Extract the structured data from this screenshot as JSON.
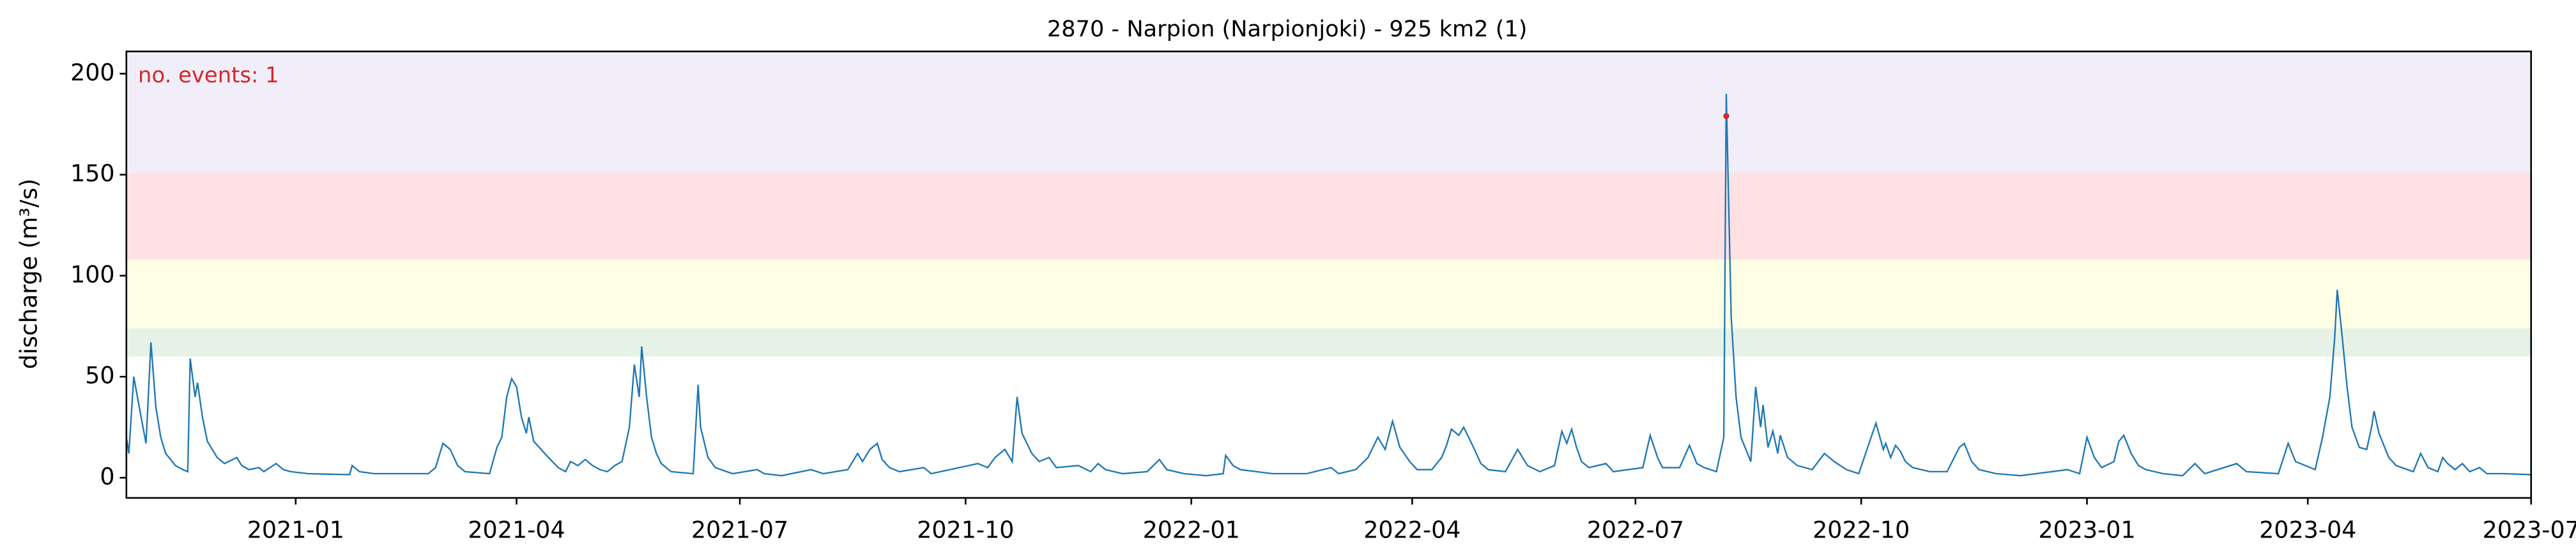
{
  "chart_data": {
    "type": "line",
    "title": "2870 - Narpion (Narpionjoki) - 925 km2 (1)",
    "y_label": "discharge (m³/s)",
    "annotation": "no. events: 1",
    "annotation_color": "#d62728",
    "xlim": [
      "2020-10-24",
      "2023-07-01"
    ],
    "ylim": [
      -10,
      211
    ],
    "yticks": [
      0,
      50,
      100,
      150,
      200
    ],
    "xticks": [
      {
        "value": "2021-01-01",
        "label": "2021-01"
      },
      {
        "value": "2021-04-01",
        "label": "2021-04"
      },
      {
        "value": "2021-07-01",
        "label": "2021-07"
      },
      {
        "value": "2021-10-01",
        "label": "2021-10"
      },
      {
        "value": "2022-01-01",
        "label": "2022-01"
      },
      {
        "value": "2022-04-01",
        "label": "2022-04"
      },
      {
        "value": "2022-07-01",
        "label": "2022-07"
      },
      {
        "value": "2022-10-01",
        "label": "2022-10"
      },
      {
        "value": "2023-01-01",
        "label": "2023-01"
      },
      {
        "value": "2023-04-01",
        "label": "2023-04"
      },
      {
        "value": "2023-07-01",
        "label": "2023-07"
      }
    ],
    "bands": [
      {
        "from": 60,
        "to": 74,
        "color": "#e5f2e5"
      },
      {
        "from": 74,
        "to": 108,
        "color": "#fefee4"
      },
      {
        "from": 108,
        "to": 151,
        "color": "#ffe1e4"
      },
      {
        "from": 151,
        "to": 211,
        "color": "#f1eefa"
      }
    ],
    "series": [
      {
        "color": "#1f77b4",
        "x": [
          "2020-10-24",
          "2020-10-25",
          "2020-10-27",
          "2020-10-30",
          "2020-11-01",
          "2020-11-03",
          "2020-11-05",
          "2020-11-07",
          "2020-11-09",
          "2020-11-13",
          "2020-11-16",
          "2020-11-18",
          "2020-11-19",
          "2020-11-21",
          "2020-11-22",
          "2020-11-24",
          "2020-11-26",
          "2020-11-30",
          "2020-12-03",
          "2020-12-08",
          "2020-12-10",
          "2020-12-13",
          "2020-12-17",
          "2020-12-19",
          "2020-12-24",
          "2020-12-27",
          "2020-12-30",
          "2021-01-06",
          "2021-01-23",
          "2021-01-24",
          "2021-01-27",
          "2021-02-02",
          "2021-02-24",
          "2021-02-27",
          "2021-03-02",
          "2021-03-05",
          "2021-03-08",
          "2021-03-11",
          "2021-03-21",
          "2021-03-24",
          "2021-03-26",
          "2021-03-28",
          "2021-03-30",
          "2021-04-01",
          "2021-04-03",
          "2021-04-05",
          "2021-04-06",
          "2021-04-08",
          "2021-04-11",
          "2021-04-14",
          "2021-04-18",
          "2021-04-21",
          "2021-04-23",
          "2021-04-26",
          "2021-04-29",
          "2021-05-02",
          "2021-05-05",
          "2021-05-08",
          "2021-05-11",
          "2021-05-14",
          "2021-05-17",
          "2021-05-19",
          "2021-05-21",
          "2021-05-22",
          "2021-05-24",
          "2021-05-26",
          "2021-05-28",
          "2021-05-30",
          "2021-06-03",
          "2021-06-12",
          "2021-06-14",
          "2021-06-15",
          "2021-06-18",
          "2021-06-21",
          "2021-06-28",
          "2021-07-08",
          "2021-07-11",
          "2021-07-18",
          "2021-07-30",
          "2021-08-04",
          "2021-08-14",
          "2021-08-18",
          "2021-08-20",
          "2021-08-23",
          "2021-08-26",
          "2021-08-28",
          "2021-08-31",
          "2021-09-04",
          "2021-09-14",
          "2021-09-17",
          "2021-10-06",
          "2021-10-10",
          "2021-10-13",
          "2021-10-17",
          "2021-10-20",
          "2021-10-22",
          "2021-10-24",
          "2021-10-28",
          "2021-10-31",
          "2021-11-04",
          "2021-11-07",
          "2021-11-16",
          "2021-11-21",
          "2021-11-24",
          "2021-11-27",
          "2021-12-04",
          "2021-12-14",
          "2021-12-19",
          "2021-12-22",
          "2021-12-29",
          "2022-01-07",
          "2022-01-14",
          "2022-01-15",
          "2022-01-18",
          "2022-01-21",
          "2022-02-03",
          "2022-02-17",
          "2022-02-27",
          "2022-03-02",
          "2022-03-09",
          "2022-03-14",
          "2022-03-18",
          "2022-03-21",
          "2022-03-24",
          "2022-03-27",
          "2022-03-31",
          "2022-04-03",
          "2022-04-09",
          "2022-04-13",
          "2022-04-15",
          "2022-04-17",
          "2022-04-20",
          "2022-04-22",
          "2022-04-26",
          "2022-04-29",
          "2022-05-02",
          "2022-05-09",
          "2022-05-14",
          "2022-05-18",
          "2022-05-23",
          "2022-05-29",
          "2022-06-01",
          "2022-06-03",
          "2022-06-05",
          "2022-06-07",
          "2022-06-09",
          "2022-06-12",
          "2022-06-19",
          "2022-06-22",
          "2022-07-04",
          "2022-07-07",
          "2022-07-10",
          "2022-07-12",
          "2022-07-19",
          "2022-07-23",
          "2022-07-26",
          "2022-07-29",
          "2022-08-03",
          "2022-08-06",
          "2022-08-07",
          "2022-08-09",
          "2022-08-11",
          "2022-08-13",
          "2022-08-17",
          "2022-08-19",
          "2022-08-21",
          "2022-08-22",
          "2022-08-24",
          "2022-08-26",
          "2022-08-28",
          "2022-08-29",
          "2022-09-01",
          "2022-09-05",
          "2022-09-11",
          "2022-09-16",
          "2022-09-20",
          "2022-09-25",
          "2022-09-30",
          "2022-10-07",
          "2022-10-10",
          "2022-10-11",
          "2022-10-13",
          "2022-10-15",
          "2022-10-17",
          "2022-10-19",
          "2022-10-22",
          "2022-10-29",
          "2022-11-05",
          "2022-11-10",
          "2022-11-12",
          "2022-11-15",
          "2022-11-18",
          "2022-11-25",
          "2022-12-05",
          "2022-12-24",
          "2022-12-29",
          "2023-01-01",
          "2023-01-04",
          "2023-01-07",
          "2023-01-12",
          "2023-01-14",
          "2023-01-16",
          "2023-01-19",
          "2023-01-22",
          "2023-01-25",
          "2023-02-01",
          "2023-02-09",
          "2023-02-14",
          "2023-02-18",
          "2023-03-03",
          "2023-03-07",
          "2023-03-20",
          "2023-03-24",
          "2023-03-27",
          "2023-04-04",
          "2023-04-07",
          "2023-04-10",
          "2023-04-12",
          "2023-04-13",
          "2023-04-15",
          "2023-04-17",
          "2023-04-19",
          "2023-04-22",
          "2023-04-25",
          "2023-04-27",
          "2023-04-28",
          "2023-04-30",
          "2023-05-02",
          "2023-05-04",
          "2023-05-07",
          "2023-05-14",
          "2023-05-17",
          "2023-05-20",
          "2023-05-24",
          "2023-05-26",
          "2023-05-28",
          "2023-05-31",
          "2023-06-03",
          "2023-06-06",
          "2023-06-10",
          "2023-06-13",
          "2023-06-20",
          "2023-07-01"
        ],
        "values": [
          20,
          12,
          50,
          30,
          17,
          67,
          35,
          20,
          12,
          6,
          4,
          3,
          59,
          40,
          47,
          30,
          18,
          10,
          7,
          10,
          6,
          4,
          5,
          3,
          7,
          4,
          3,
          2,
          1.5,
          6,
          3,
          2,
          2,
          5,
          17,
          14,
          6,
          3,
          2,
          15,
          20,
          40,
          49,
          45,
          30,
          22,
          30,
          18,
          14,
          10,
          5,
          3,
          8,
          6,
          9,
          6,
          4,
          3,
          6,
          8,
          25,
          56,
          40,
          65,
          40,
          20,
          12,
          7,
          3,
          2,
          46,
          25,
          10,
          5,
          2,
          4,
          2,
          1,
          4,
          2,
          4,
          12,
          8,
          14,
          17,
          9,
          5,
          3,
          5,
          2,
          7,
          5,
          10,
          14,
          8,
          40,
          22,
          12,
          8,
          10,
          5,
          6,
          3,
          7,
          4,
          2,
          3,
          9,
          4,
          2,
          1,
          2,
          11,
          6,
          4,
          2,
          2,
          5,
          2,
          4,
          10,
          20,
          14,
          28,
          15,
          8,
          4,
          4,
          10,
          16,
          24,
          21,
          25,
          15,
          7,
          4,
          3,
          14,
          6,
          3,
          6,
          23,
          17,
          24,
          15,
          8,
          5,
          7,
          3,
          5,
          21,
          10,
          5,
          5,
          16,
          7,
          5,
          3,
          20,
          190,
          80,
          40,
          20,
          8,
          45,
          25,
          36,
          15,
          23,
          12,
          21,
          10,
          6,
          4,
          12,
          8,
          4,
          2,
          27,
          14,
          17,
          10,
          16,
          13,
          8,
          5,
          3,
          3,
          15,
          17,
          8,
          4,
          2,
          1,
          4,
          2,
          20,
          10,
          5,
          8,
          18,
          21,
          12,
          6,
          4,
          2,
          1,
          7,
          2,
          7,
          3,
          2,
          17,
          8,
          4,
          20,
          40,
          70,
          93,
          70,
          45,
          25,
          15,
          14,
          25,
          33,
          22,
          16,
          10,
          6,
          3,
          12,
          5,
          3,
          10,
          7,
          4,
          7,
          3,
          5,
          2,
          2,
          1.5
        ]
      }
    ],
    "events": {
      "color": "#d62728",
      "x": [
        "2022-08-07"
      ],
      "values": [
        179
      ]
    }
  }
}
